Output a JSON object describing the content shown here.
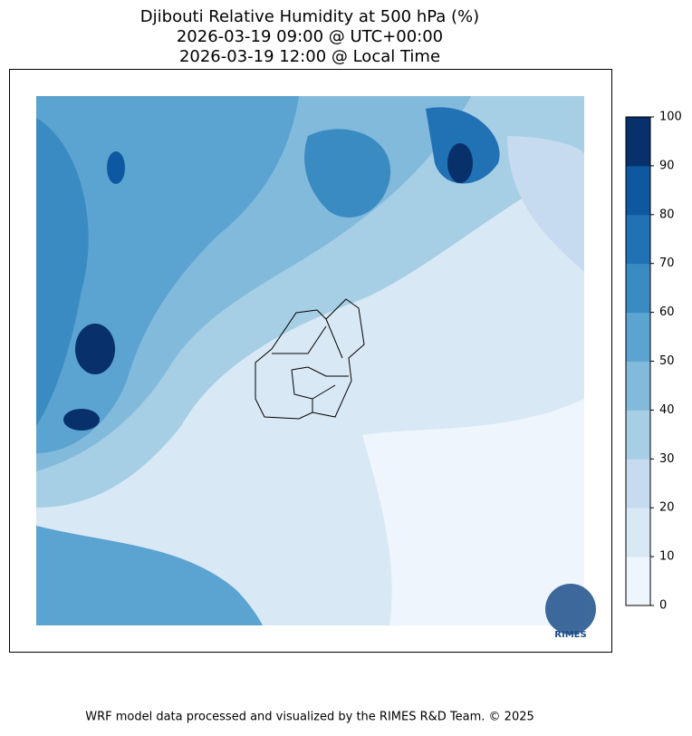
{
  "title": [
    "Djibouti Relative Humidity at 500 hPa (%)",
    "2026-03-19 09:00 @ UTC+00:00",
    "2026-03-19 12:00 @ Local Time"
  ],
  "colorbar": {
    "ticks": [
      0,
      10,
      20,
      30,
      40,
      50,
      60,
      70,
      80,
      90,
      100
    ],
    "colors": [
      "#eef5fc",
      "#d9e8f5",
      "#c6dbef",
      "#a6cee4",
      "#82badb",
      "#5ba3d0",
      "#3b8bc3",
      "#2171b5",
      "#0e58a2",
      "#08306b"
    ]
  },
  "logo_text": "RIMES",
  "footer": "WRF model data processed and visualized by the RIMES R&D Team. © 2025"
}
